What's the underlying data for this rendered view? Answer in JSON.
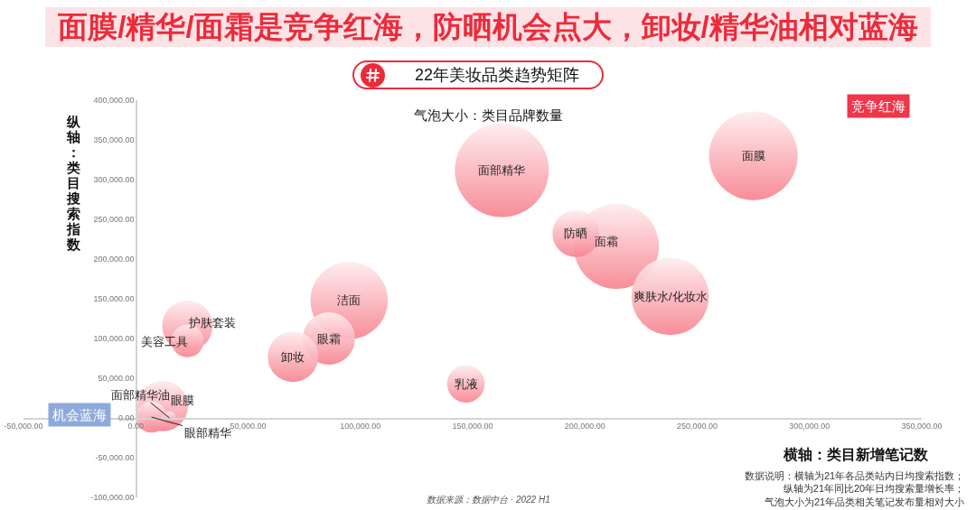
{
  "chart_data": {
    "type": "bubble",
    "title": "面膜/精华/面霜是竞争红海，防晒机会点大，卸妆/精华油相对蓝海",
    "subtitle": "22年美妆品类趋势矩阵",
    "xlabel": "横轴：类目新增笔记数",
    "ylabel": "纵轴：类目搜索指数",
    "x": [
      275000,
      163000,
      214000,
      196000,
      238000,
      95000,
      86000,
      70000,
      23000,
      23000,
      147000,
      12000,
      7000,
      15000
    ],
    "values": [
      330000,
      312000,
      216000,
      232000,
      153000,
      148000,
      100000,
      77000,
      116000,
      97000,
      43000,
      15000,
      1000,
      0
    ],
    "sizes": [
      0.89,
      1,
      0.82,
      0.25,
      0.68,
      0.68,
      0.31,
      0.29,
      0.29,
      0.12,
      0.16,
      0.29,
      0.11,
      0.02
    ],
    "color": "#f7838f",
    "xlim": [
      -50000,
      350000
    ],
    "xticks": [
      {
        "value": -50000,
        "label": "-50,000.00"
      },
      {
        "value": 0,
        "label": "0.00"
      },
      {
        "value": 50000,
        "label": "50,000.00"
      },
      {
        "value": 100000,
        "label": "100,000.00"
      },
      {
        "value": 150000,
        "label": "150,000.00"
      },
      {
        "value": 200000,
        "label": "200,000.00"
      },
      {
        "value": 250000,
        "label": "250,000.00"
      },
      {
        "value": 300000,
        "label": "300,000.00"
      },
      {
        "value": 350000,
        "label": "350,000.00"
      }
    ],
    "ylim": [
      -100000,
      400000
    ],
    "yticks": [
      {
        "value": -100000,
        "label": "-100,000.00"
      },
      {
        "value": -50000,
        "label": "-50,000.00"
      },
      {
        "value": 0,
        "label": "0.00"
      },
      {
        "value": 50000,
        "label": "50,000.00"
      },
      {
        "value": 100000,
        "label": "100,000.00"
      },
      {
        "value": 150000,
        "label": "150,000.00"
      },
      {
        "value": 200000,
        "label": "200,000.00"
      },
      {
        "value": 250000,
        "label": "250,000.00"
      },
      {
        "value": 300000,
        "label": "300,000.00"
      },
      {
        "value": 350000,
        "label": "350,000.00"
      },
      {
        "value": 400000,
        "label": "400,000.00"
      }
    ],
    "annotations": [
      "气泡大小：类目品牌数量",
      "竞争红海",
      "机会蓝海",
      "数据说明：横轴为21年各品类站内日均搜索指数；纵轴为21年同比20年日均搜索量增长率；气泡大小为21年品类相关笔记发布量相对大小",
      "数据来源：数据中台 · 2022 H1",
      {
        "text": "面膜",
        "x": 275000,
        "y": 330000
      },
      {
        "text": "面部精华",
        "x": 163000,
        "y": 312000
      },
      {
        "text": "面霜",
        "x": 214000,
        "y": 216000
      },
      {
        "text": "防晒",
        "x": 196000,
        "y": 232000
      },
      {
        "text": "爽肤水/化妆水",
        "x": 238000,
        "y": 153000
      },
      {
        "text": "洁面",
        "x": 95000,
        "y": 148000
      },
      {
        "text": "眼霜",
        "x": 86000,
        "y": 100000
      },
      {
        "text": "卸妆",
        "x": 70000,
        "y": 77000
      },
      {
        "text": "护肤套装",
        "x": 23000,
        "y": 116000
      },
      {
        "text": "美容工具",
        "x": 23000,
        "y": 97000
      },
      {
        "text": "乳液",
        "x": 147000,
        "y": 43000
      },
      {
        "text": "眼膜",
        "x": 12000,
        "y": 15000
      },
      {
        "text": "眼部精华",
        "x": 7000,
        "y": 1000
      },
      {
        "text": "面部精华油",
        "x": 15000,
        "y": 0
      }
    ]
  }
}
